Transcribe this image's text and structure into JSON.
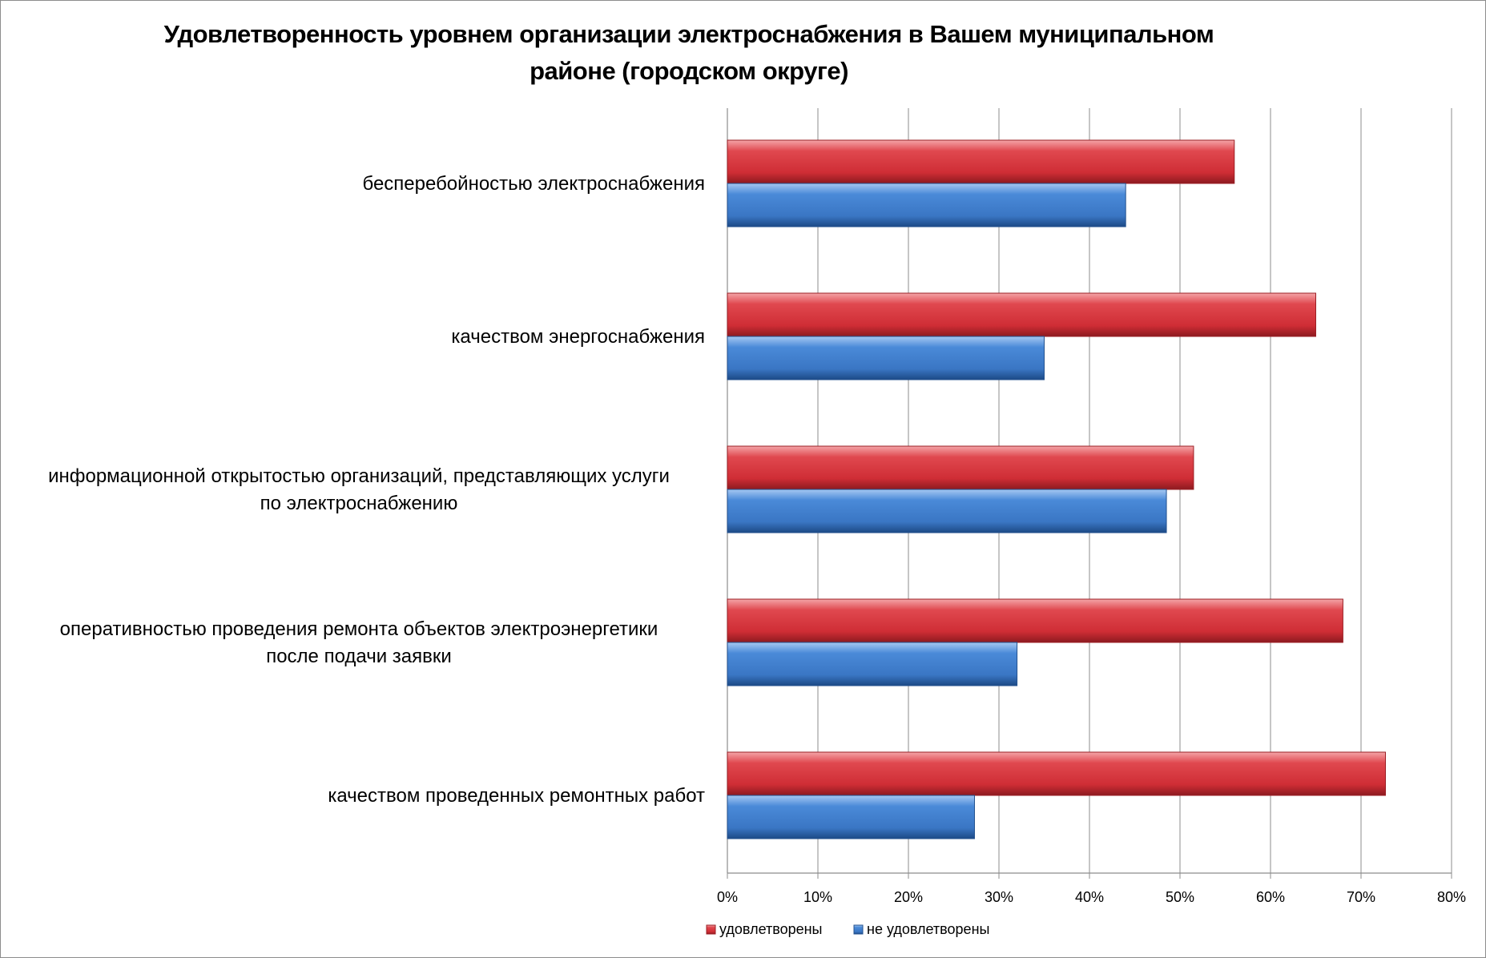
{
  "chart_data": {
    "type": "bar",
    "orientation": "horizontal",
    "title": "Удовлетворенность уровнем организации электроснабжения в Вашем муниципальном районе (городском округе)",
    "categories": [
      [
        "бесперебойностью  электроснабжения"
      ],
      [
        "качеством энергоснабжения"
      ],
      [
        "информационной открытостью организаций, представляющих услуги",
        "по электроснабжению"
      ],
      [
        "оперативностью проведения ремонта объектов электроэнергетики",
        "после подачи заявки"
      ],
      [
        "качеством проведенных ремонтных работ"
      ]
    ],
    "series": [
      {
        "name": "удовлетворены",
        "color": "#d9363e",
        "values": [
          56,
          65,
          51.5,
          68,
          72.7
        ]
      },
      {
        "name": "не удовлетворены",
        "color": "#3f7fd0",
        "values": [
          44,
          35,
          48.5,
          32,
          27.3
        ]
      }
    ],
    "xlim": [
      0,
      80
    ],
    "x_ticks": [
      0,
      10,
      20,
      30,
      40,
      50,
      60,
      70,
      80
    ],
    "x_tick_format": "%",
    "grid": true,
    "legend_position": "bottom"
  }
}
